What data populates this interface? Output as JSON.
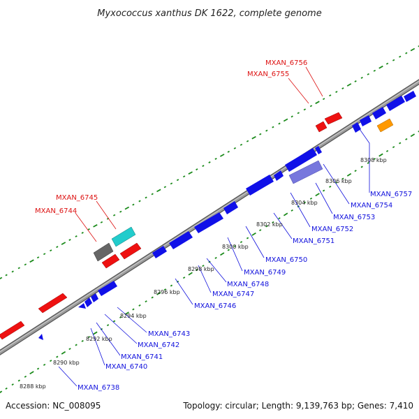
{
  "title": "Myxococcus xanthus DK 1622, complete genome",
  "footer": {
    "accession": "Accession: NC_008095",
    "summary": "Topology: circular; Length: 9,139,763 bp; Genes: 7,410"
  },
  "colors": {
    "forward_gene": "#1010e8",
    "outer_gene": "#ee1111",
    "backbone": "#8c8c8c",
    "tick": "#1a8a1a",
    "label_highlight": "#dd1111",
    "label_normal": "#1111dd",
    "cyan_gene": "#22cccc",
    "gray_gene": "#666666",
    "orange_gene": "#ff9900",
    "lavender_gene": "#7777dd"
  },
  "scale": {
    "unit": "kbp",
    "labels": [
      "8288 kbp",
      "8290 kbp",
      "8292 kbp",
      "8294 kbp",
      "8296 kbp",
      "8298 kbp",
      "8300 kbp",
      "8302 kbp",
      "8304 kbp",
      "8306 kbp",
      "8308 kbp"
    ]
  },
  "labels": {
    "outer": [
      "MXAN_6756",
      "MXAN_6755",
      "MXAN_6745",
      "MXAN_6744"
    ],
    "inner": [
      "MXAN_6757",
      "MXAN_6754",
      "MXAN_6753",
      "MXAN_6752",
      "MXAN_6751",
      "MXAN_6750",
      "MXAN_6749",
      "MXAN_6748",
      "MXAN_6747",
      "MXAN_6746",
      "MXAN_6743",
      "MXAN_6742",
      "MXAN_6741",
      "MXAN_6740",
      "MXAN_6738"
    ]
  }
}
